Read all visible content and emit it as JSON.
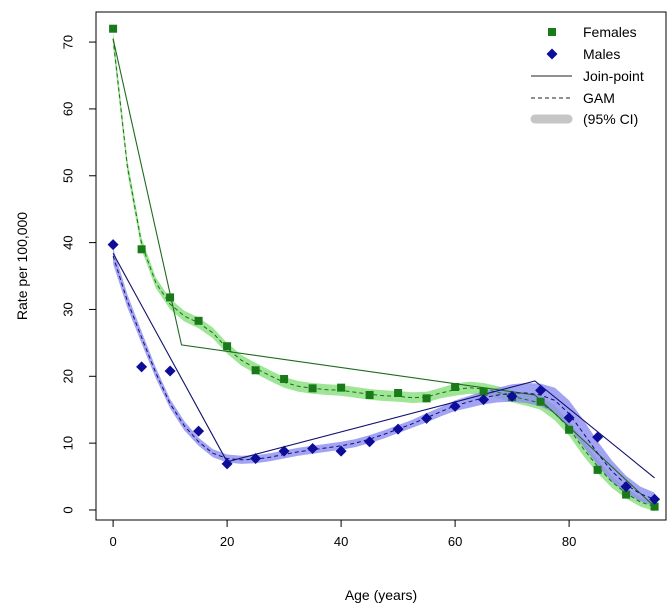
{
  "chart_data": {
    "type": "scatter",
    "xlabel": "Age (years)",
    "ylabel": "Rate per 100,000",
    "xlim": [
      -3,
      97
    ],
    "ylim": [
      -1.5,
      74.5
    ],
    "xticks": [
      0,
      20,
      40,
      60,
      80
    ],
    "yticks": [
      0,
      10,
      20,
      30,
      40,
      50,
      60,
      70
    ],
    "grid": false,
    "legend_position": "top-right",
    "colors": {
      "females": "#1a7a1a",
      "females_band": "#86e07a",
      "females_line": "#1e6b1e",
      "males": "#0d0d99",
      "males_band": "#8c8cf0",
      "males_line": "#101070"
    },
    "legend": [
      {
        "label": "Females",
        "marker": "square"
      },
      {
        "label": "Males",
        "marker": "diamond"
      },
      {
        "label": "Join-point",
        "marker": "solid-line"
      },
      {
        "label": "GAM",
        "marker": "dashed-line"
      },
      {
        "label": "(95% CI)",
        "marker": "band"
      }
    ],
    "series": [
      {
        "name": "Females",
        "marker": "square",
        "x": [
          0,
          5,
          10,
          15,
          20,
          25,
          30,
          35,
          40,
          45,
          50,
          55,
          60,
          65,
          70,
          75,
          80,
          85,
          90,
          95
        ],
        "y": [
          72.0,
          39.0,
          31.8,
          28.3,
          24.5,
          20.9,
          19.6,
          18.2,
          18.3,
          17.2,
          17.5,
          16.7,
          18.4,
          17.7,
          16.9,
          16.2,
          12.0,
          6.0,
          2.3,
          0.5
        ],
        "joinpoint": {
          "x": [
            0,
            12,
            74,
            95
          ],
          "y": [
            70.5,
            24.7,
            17.2,
            0.5
          ]
        },
        "gam": {
          "x": [
            0,
            2.5,
            5,
            7.5,
            10,
            12.5,
            15,
            17.5,
            20,
            22.5,
            25,
            27.5,
            30,
            32.5,
            35,
            37.5,
            40,
            42.5,
            45,
            47.5,
            50,
            52.5,
            55,
            57.5,
            60,
            62.5,
            65,
            67.5,
            70,
            72.5,
            75,
            77.5,
            80,
            82.5,
            85,
            87.5,
            90,
            92.5,
            95
          ],
          "y": [
            70.5,
            51.5,
            39.8,
            34.0,
            30.8,
            29.0,
            28.0,
            26.5,
            24.2,
            22.4,
            21.2,
            20.1,
            19.1,
            18.5,
            18.2,
            18.0,
            17.9,
            17.6,
            17.3,
            17.1,
            17.0,
            16.8,
            16.9,
            17.5,
            18.0,
            18.3,
            18.1,
            17.6,
            17.0,
            16.5,
            16.0,
            14.5,
            12.2,
            9.2,
            6.5,
            4.2,
            2.5,
            1.2,
            0.5
          ],
          "ci": [
            1.2,
            1.0,
            0.9,
            0.8,
            0.8,
            0.8,
            0.8,
            0.8,
            0.8,
            0.8,
            0.8,
            0.8,
            0.8,
            0.8,
            0.8,
            0.8,
            0.8,
            0.8,
            0.8,
            0.8,
            0.8,
            0.8,
            0.8,
            0.8,
            0.9,
            0.9,
            0.9,
            0.9,
            0.9,
            0.9,
            1.0,
            1.1,
            1.1,
            1.1,
            1.0,
            0.9,
            0.8,
            0.7,
            0.7
          ]
        }
      },
      {
        "name": "Males",
        "marker": "diamond",
        "x": [
          0,
          5,
          10,
          15,
          20,
          25,
          30,
          35,
          40,
          45,
          50,
          55,
          60,
          65,
          70,
          75,
          80,
          85,
          90,
          95
        ],
        "y": [
          39.7,
          21.4,
          20.8,
          11.8,
          6.9,
          7.7,
          8.8,
          9.2,
          8.8,
          10.2,
          12.1,
          13.7,
          15.5,
          16.5,
          17.0,
          17.9,
          13.8,
          10.9,
          3.5,
          1.6
        ],
        "joinpoint": {
          "x": [
            0,
            20,
            74,
            95
          ],
          "y": [
            38.4,
            7.2,
            19.3,
            4.8
          ]
        },
        "gam": {
          "x": [
            0,
            2.5,
            5,
            7.5,
            10,
            12.5,
            15,
            17.5,
            20,
            22.5,
            25,
            27.5,
            30,
            32.5,
            35,
            37.5,
            40,
            42.5,
            45,
            47.5,
            50,
            52.5,
            55,
            57.5,
            60,
            62.5,
            65,
            67.5,
            70,
            72.5,
            75,
            77.5,
            80,
            82.5,
            85,
            87.5,
            90,
            92.5,
            95
          ],
          "y": [
            38.0,
            31.3,
            25.8,
            20.5,
            15.9,
            12.6,
            10.2,
            8.5,
            7.7,
            7.5,
            7.6,
            7.9,
            8.3,
            8.7,
            9.0,
            9.3,
            9.6,
            10.0,
            10.6,
            11.3,
            12.1,
            12.9,
            13.8,
            14.7,
            15.6,
            16.2,
            16.8,
            17.2,
            17.5,
            17.5,
            17.2,
            16.4,
            14.4,
            11.5,
            8.5,
            5.8,
            3.8,
            2.4,
            1.6
          ],
          "ci": [
            1.2,
            1.0,
            0.9,
            0.8,
            0.7,
            0.7,
            0.6,
            0.6,
            0.6,
            0.6,
            0.6,
            0.6,
            0.6,
            0.6,
            0.6,
            0.6,
            0.6,
            0.6,
            0.6,
            0.6,
            0.6,
            0.6,
            0.7,
            0.7,
            0.8,
            0.9,
            1.0,
            1.1,
            1.3,
            1.5,
            1.7,
            1.9,
            2.0,
            2.0,
            1.8,
            1.6,
            1.3,
            1.1,
            1.0
          ]
        }
      }
    ]
  }
}
